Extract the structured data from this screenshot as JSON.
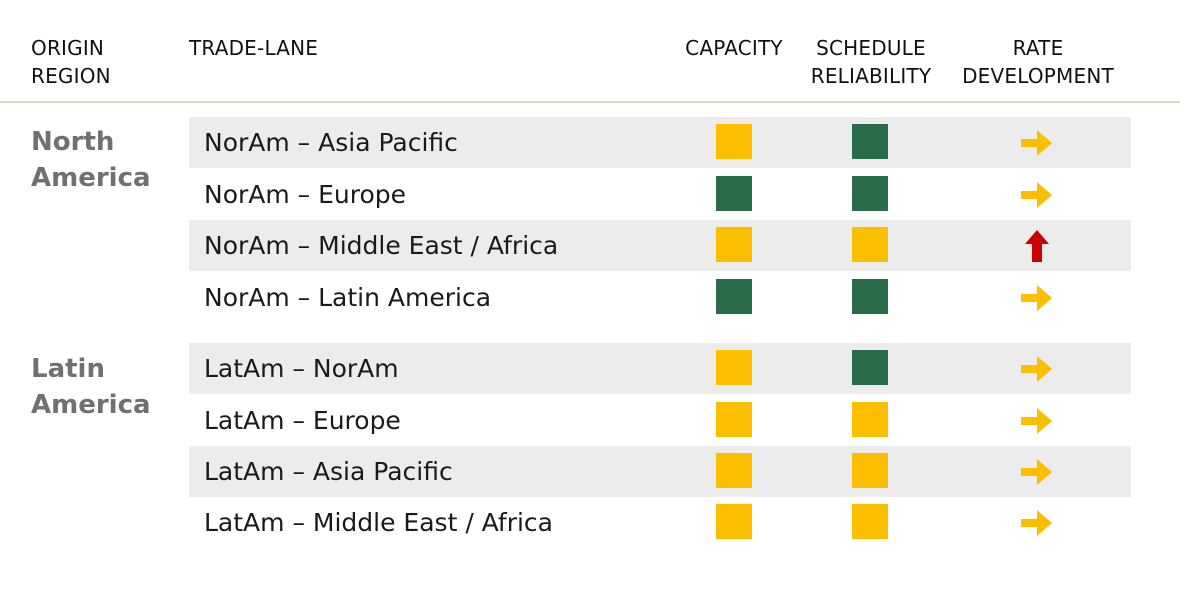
{
  "header": {
    "origin_region": "ORIGIN\nREGION",
    "trade_lane": "TRADE-LANE",
    "capacity": "CAPACITY",
    "schedule_reliability": "SCHEDULE\nRELIABILITY",
    "rate_development": "RATE\nDEVELOPMENT"
  },
  "colors": {
    "yellow": "#fcbf00",
    "green": "#2a6b49",
    "up_red": "#cc0000",
    "stable_yellow": "#fcbf00"
  },
  "regions": [
    {
      "name": "North\nAmerica",
      "rows": [
        {
          "lane": "NorAm – Asia Pacific",
          "capacity": "yellow",
          "schedule_reliability": "green",
          "rate_development": "stable"
        },
        {
          "lane": "NorAm – Europe",
          "capacity": "green",
          "schedule_reliability": "green",
          "rate_development": "stable"
        },
        {
          "lane": "NorAm – Middle East / Africa",
          "capacity": "yellow",
          "schedule_reliability": "yellow",
          "rate_development": "up"
        },
        {
          "lane": "NorAm – Latin America",
          "capacity": "green",
          "schedule_reliability": "green",
          "rate_development": "stable"
        }
      ]
    },
    {
      "name": "Latin\nAmerica",
      "rows": [
        {
          "lane": "LatAm – NorAm",
          "capacity": "yellow",
          "schedule_reliability": "green",
          "rate_development": "stable"
        },
        {
          "lane": "LatAm – Europe",
          "capacity": "yellow",
          "schedule_reliability": "yellow",
          "rate_development": "stable"
        },
        {
          "lane": "LatAm – Asia Pacific",
          "capacity": "yellow",
          "schedule_reliability": "yellow",
          "rate_development": "stable"
        },
        {
          "lane": "LatAm – Middle East / Africa",
          "capacity": "yellow",
          "schedule_reliability": "yellow",
          "rate_development": "stable"
        }
      ]
    }
  ]
}
